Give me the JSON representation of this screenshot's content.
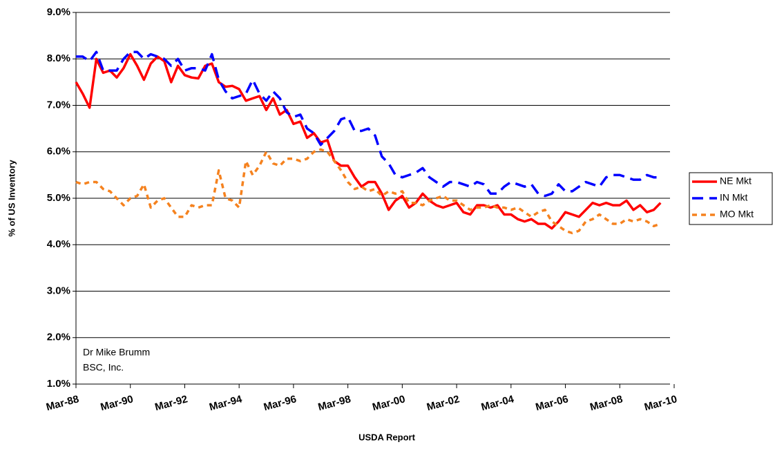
{
  "chart_data": {
    "type": "line",
    "x_label": "USDA Report",
    "y_label": "% of US Inventory",
    "annotations": [
      "Dr Mike Brumm",
      "BSC, Inc."
    ],
    "categories": [
      "Mar-88",
      null,
      null,
      null,
      null,
      null,
      null,
      null,
      "Mar-90",
      null,
      null,
      null,
      null,
      null,
      null,
      null,
      "Mar-92",
      null,
      null,
      null,
      null,
      null,
      null,
      null,
      "Mar-94",
      null,
      null,
      null,
      null,
      null,
      null,
      null,
      "Mar-96",
      null,
      null,
      null,
      null,
      null,
      null,
      null,
      "Mar-98",
      null,
      null,
      null,
      null,
      null,
      null,
      null,
      "Mar-00",
      null,
      null,
      null,
      null,
      null,
      null,
      null,
      "Mar-02",
      null,
      null,
      null,
      null,
      null,
      null,
      null,
      "Mar-04",
      null,
      null,
      null,
      null,
      null,
      null,
      null,
      "Mar-06",
      null,
      null,
      null,
      null,
      null,
      null,
      null,
      "Mar-08",
      null,
      null,
      null,
      null,
      null,
      null,
      null,
      "Mar-10"
    ],
    "series": [
      {
        "name": "NE Mkt",
        "color": "#ff0000",
        "dash": "solid",
        "values": [
          7.5,
          7.25,
          6.95,
          8.0,
          7.7,
          7.75,
          7.6,
          7.8,
          8.1,
          7.85,
          7.55,
          7.9,
          8.05,
          7.95,
          7.5,
          7.85,
          7.65,
          7.6,
          7.58,
          7.85,
          7.9,
          7.5,
          7.4,
          7.42,
          7.35,
          7.1,
          7.15,
          7.2,
          6.9,
          7.15,
          6.8,
          6.9,
          6.6,
          6.65,
          6.3,
          6.4,
          6.2,
          6.25,
          5.8,
          5.7,
          5.7,
          5.45,
          5.25,
          5.35,
          5.35,
          5.1,
          4.75,
          4.95,
          5.05,
          4.8,
          4.9,
          5.1,
          4.95,
          4.85,
          4.8,
          4.85,
          4.9,
          4.7,
          4.65,
          4.85,
          4.85,
          4.8,
          4.85,
          4.65,
          4.65,
          4.55,
          4.5,
          4.55,
          4.45,
          4.45,
          4.35,
          4.5,
          4.7,
          4.65,
          4.6,
          4.75,
          4.9,
          4.85,
          4.9,
          4.85,
          4.85,
          4.95,
          4.75,
          4.85,
          4.7,
          4.75,
          4.9,
          null,
          null
        ]
      },
      {
        "name": "IN Mkt",
        "color": "#0000ff",
        "dash": "dashed",
        "values": [
          8.05,
          8.05,
          7.95,
          8.15,
          7.75,
          7.75,
          7.75,
          8.0,
          8.15,
          8.15,
          8.0,
          8.1,
          8.05,
          8.0,
          7.85,
          8.0,
          7.75,
          7.8,
          7.8,
          7.75,
          8.1,
          7.55,
          7.3,
          7.15,
          7.2,
          7.25,
          7.55,
          7.25,
          7.1,
          7.3,
          7.15,
          6.85,
          6.75,
          6.8,
          6.5,
          6.4,
          6.15,
          6.3,
          6.45,
          6.7,
          6.75,
          6.45,
          6.45,
          6.5,
          6.35,
          5.9,
          5.75,
          5.5,
          5.45,
          5.5,
          5.55,
          5.65,
          5.45,
          5.35,
          5.25,
          5.35,
          5.35,
          5.3,
          5.25,
          5.35,
          5.3,
          5.1,
          5.1,
          5.25,
          5.35,
          5.3,
          5.25,
          5.3,
          5.1,
          5.05,
          5.1,
          5.3,
          5.15,
          5.15,
          5.25,
          5.35,
          5.3,
          5.25,
          5.45,
          5.5,
          5.5,
          5.45,
          5.4,
          5.4,
          5.5,
          5.45,
          5.45,
          null,
          null
        ]
      },
      {
        "name": "MO Mkt",
        "color": "#f5821f",
        "dash": "dotted",
        "values": [
          5.35,
          5.3,
          5.35,
          5.35,
          5.2,
          5.15,
          5.0,
          4.85,
          5.0,
          5.05,
          5.3,
          4.8,
          4.95,
          5.0,
          4.8,
          4.6,
          4.6,
          4.85,
          4.8,
          4.85,
          4.85,
          5.6,
          5.0,
          4.95,
          4.8,
          5.8,
          5.5,
          5.7,
          6.0,
          5.75,
          5.7,
          5.85,
          5.85,
          5.8,
          5.85,
          6.0,
          6.05,
          6.0,
          5.8,
          5.6,
          5.35,
          5.2,
          5.25,
          5.15,
          5.2,
          5.05,
          5.15,
          5.1,
          5.15,
          4.9,
          4.9,
          4.85,
          4.95,
          5.0,
          5.05,
          4.95,
          4.95,
          4.85,
          4.75,
          4.8,
          4.8,
          4.85,
          4.8,
          4.8,
          4.75,
          4.8,
          4.7,
          4.6,
          4.7,
          4.75,
          4.5,
          4.4,
          4.3,
          4.25,
          4.3,
          4.5,
          4.55,
          4.65,
          4.55,
          4.45,
          4.45,
          4.55,
          4.5,
          4.55,
          4.5,
          4.4,
          4.45,
          null,
          null
        ]
      }
    ],
    "ylim": [
      1,
      9
    ],
    "yticks": [
      {
        "value": 1,
        "label": "1.0%"
      },
      {
        "value": 2,
        "label": "2.0%"
      },
      {
        "value": 3,
        "label": "3.0%"
      },
      {
        "value": 4,
        "label": "4.0%"
      },
      {
        "value": 5,
        "label": "5.0%"
      },
      {
        "value": 6,
        "label": "6.0%"
      },
      {
        "value": 7,
        "label": "7.0%"
      },
      {
        "value": 8,
        "label": "8.0%"
      },
      {
        "value": 9,
        "label": "9.0%"
      }
    ],
    "grid": true,
    "legend": "right"
  }
}
